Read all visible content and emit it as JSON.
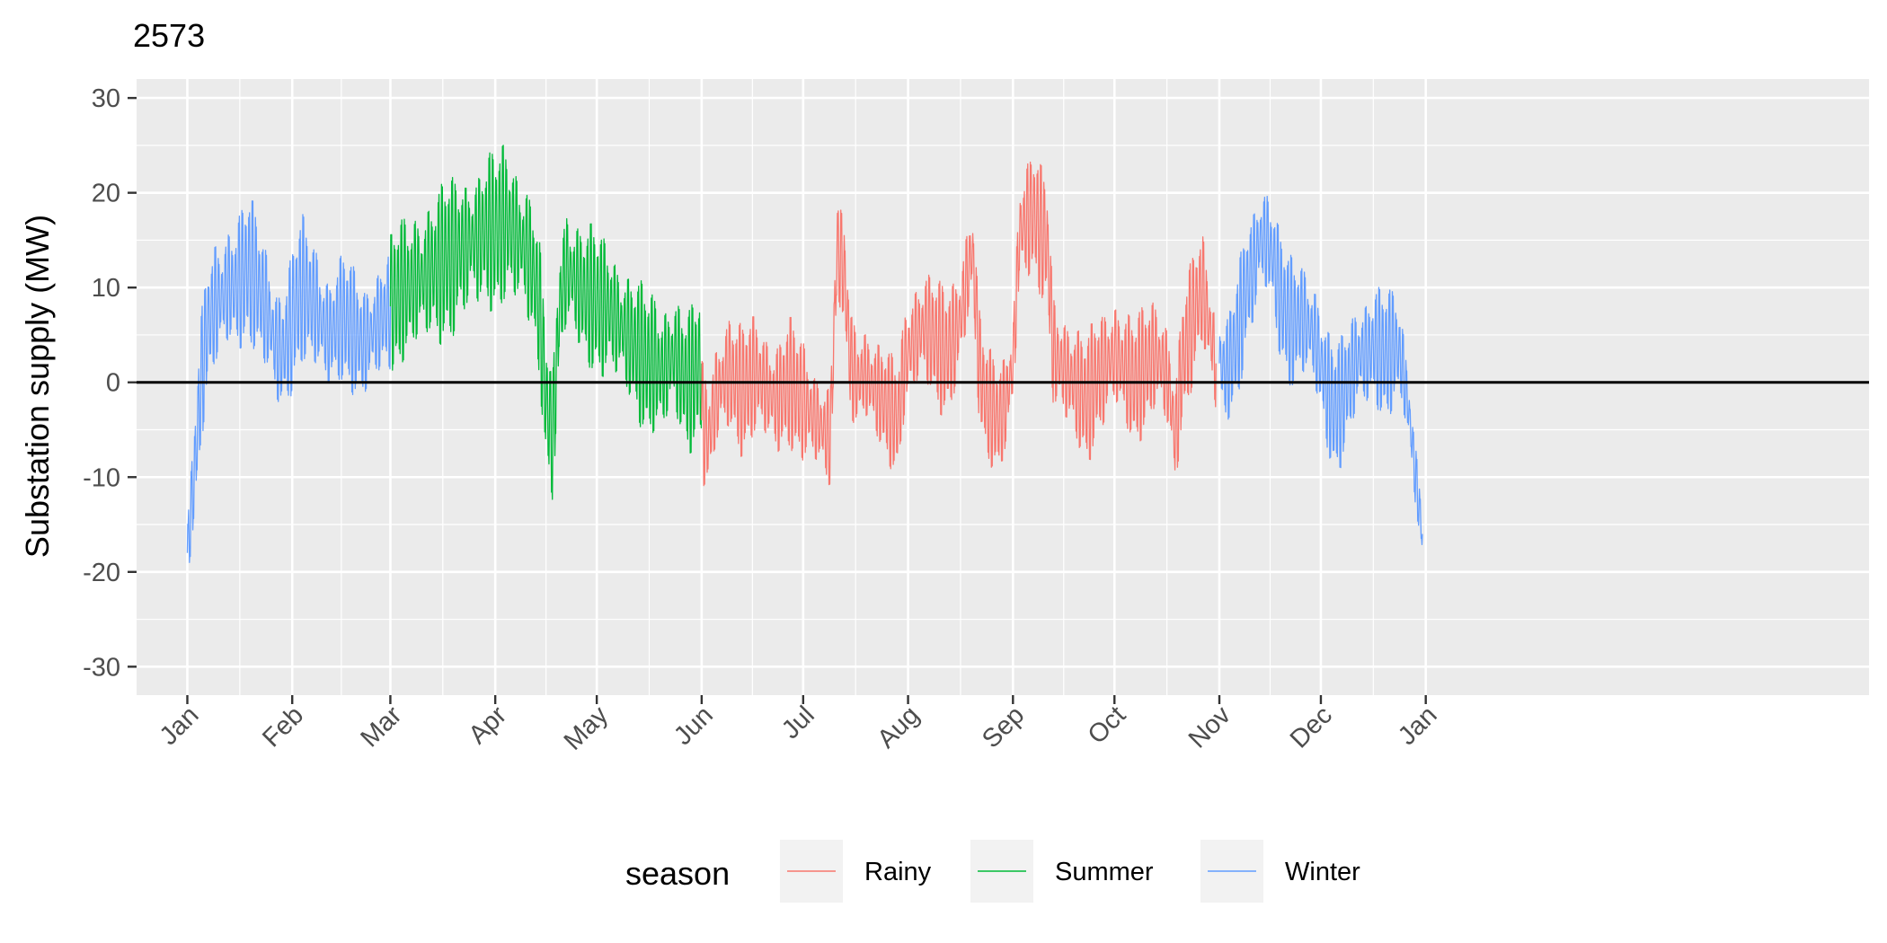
{
  "chart_data": {
    "type": "line",
    "title": "2573",
    "ylabel": "Substation supply (MW)",
    "xlabel": "",
    "ylim": [
      -33,
      32
    ],
    "yticks": [
      -30,
      -20,
      -10,
      0,
      10,
      20,
      30
    ],
    "xlim_days": [
      -15,
      497
    ],
    "xticks": [
      {
        "label": "Jan",
        "day": 0
      },
      {
        "label": "Feb",
        "day": 31
      },
      {
        "label": "Mar",
        "day": 60
      },
      {
        "label": "Apr",
        "day": 91
      },
      {
        "label": "May",
        "day": 121
      },
      {
        "label": "Jun",
        "day": 152
      },
      {
        "label": "Jul",
        "day": 182
      },
      {
        "label": "Aug",
        "day": 213
      },
      {
        "label": "Sep",
        "day": 244
      },
      {
        "label": "Oct",
        "day": 274
      },
      {
        "label": "Nov",
        "day": 305
      },
      {
        "label": "Dec",
        "day": 335
      },
      {
        "label": "Jan",
        "day": 366
      }
    ],
    "hline_y": 0,
    "grid": true,
    "legend": {
      "title": "season",
      "position": "bottom",
      "entries": [
        {
          "name": "Rainy",
          "color": "#F8766D"
        },
        {
          "name": "Summer",
          "color": "#00BA38"
        },
        {
          "name": "Winter",
          "color": "#619CFF"
        }
      ]
    },
    "series": [
      {
        "name": "Winter",
        "color": "#619CFF",
        "segments": [
          {
            "days": [
              0,
              2,
              4,
              6,
              8,
              10,
              12,
              14,
              16,
              18,
              20,
              22,
              24,
              26,
              28,
              30,
              32,
              34,
              36,
              38,
              40,
              42,
              44,
              46,
              48,
              50,
              52,
              54,
              56,
              58,
              60
            ],
            "daily_mean": [
              -18,
              -10,
              0,
              6,
              8,
              9,
              10,
              10,
              11,
              12,
              11,
              9,
              7,
              4,
              3,
              5,
              8,
              10,
              9,
              8,
              6,
              5,
              6,
              7,
              6,
              5,
              4,
              5,
              6,
              7,
              8
            ],
            "daily_amp": [
              4,
              6,
              8,
              8,
              9,
              9,
              9,
              9,
              9,
              9,
              9,
              9,
              9,
              9,
              9,
              9,
              9,
              9,
              9,
              9,
              9,
              8,
              8,
              8,
              8,
              8,
              8,
              8,
              8,
              8,
              8
            ]
          },
          {
            "days": [
              305,
              307,
              309,
              311,
              313,
              315,
              317,
              319,
              321,
              323,
              325,
              327,
              329,
              331,
              333,
              335,
              337,
              339,
              341,
              343,
              345,
              347,
              349,
              351,
              353,
              355,
              357,
              359,
              361,
              363,
              365
            ],
            "daily_mean": [
              2,
              1,
              3,
              6,
              10,
              12,
              15,
              15,
              13,
              9,
              7,
              6,
              7,
              6,
              5,
              2,
              -1,
              -3,
              -2,
              0,
              2,
              3,
              3,
              4,
              3,
              3,
              4,
              2,
              -3,
              -10,
              -16
            ],
            "daily_amp": [
              7,
              7,
              7,
              8,
              8,
              8,
              8,
              8,
              8,
              8,
              8,
              8,
              8,
              8,
              8,
              8,
              8,
              8,
              8,
              8,
              8,
              8,
              8,
              8,
              8,
              8,
              7,
              6,
              6,
              5,
              4
            ]
          }
        ]
      },
      {
        "name": "Summer",
        "color": "#00BA38",
        "segments": [
          {
            "days": [
              60,
              62,
              64,
              66,
              68,
              70,
              72,
              74,
              76,
              78,
              80,
              82,
              84,
              86,
              88,
              90,
              92,
              94,
              96,
              98,
              100,
              102,
              104,
              106,
              108,
              110,
              112,
              114,
              116,
              118,
              120,
              122,
              124,
              126,
              128,
              130,
              132,
              134,
              136,
              138,
              140,
              142,
              144,
              146,
              148,
              150,
              152
            ],
            "daily_mean": [
              8,
              9,
              10,
              10,
              11,
              11,
              12,
              12,
              13,
              13,
              14,
              14,
              15,
              15,
              16,
              16,
              16,
              17,
              16,
              15,
              14,
              12,
              8,
              -2,
              -6,
              8,
              12,
              11,
              10,
              9,
              9,
              8,
              8,
              7,
              6,
              5,
              4,
              3,
              2,
              2,
              1,
              2,
              3,
              1,
              0,
              1,
              2
            ],
            "daily_amp": [
              9,
              9,
              9,
              9,
              10,
              10,
              10,
              10,
              10,
              10,
              10,
              10,
              10,
              10,
              10,
              10,
              10,
              10,
              10,
              10,
              10,
              10,
              9,
              8,
              8,
              9,
              9,
              9,
              9,
              9,
              9,
              9,
              9,
              9,
              9,
              9,
              9,
              9,
              9,
              9,
              9,
              9,
              9,
              9,
              9,
              9,
              9
            ]
          }
        ]
      },
      {
        "name": "Rainy",
        "color": "#F8766D",
        "segments": [
          {
            "days": [
              152,
              154,
              156,
              158,
              160,
              162,
              164,
              166,
              168,
              170,
              172,
              174,
              176,
              178,
              180,
              182,
              184,
              186,
              188,
              190,
              192,
              194,
              196,
              198,
              200,
              202,
              204,
              206,
              208,
              210,
              212,
              214,
              216,
              218,
              220,
              222,
              224,
              226,
              228,
              230,
              232,
              234,
              236,
              238,
              240,
              242,
              244,
              246,
              248,
              250,
              252,
              254,
              256,
              258,
              260,
              262,
              264,
              266,
              268,
              270,
              272,
              274,
              276,
              278,
              280,
              282,
              284,
              286,
              288,
              290,
              292,
              294,
              296,
              298,
              300,
              302,
              304
            ],
            "daily_mean": [
              -4,
              -6,
              -2,
              0,
              1,
              0,
              -1,
              0,
              1,
              0,
              -1,
              -2,
              -1,
              0,
              -1,
              -2,
              -3,
              -4,
              -5,
              -6,
              14,
              12,
              2,
              0,
              1,
              0,
              -1,
              -2,
              -3,
              -4,
              2,
              4,
              5,
              6,
              5,
              4,
              3,
              4,
              6,
              10,
              14,
              2,
              -2,
              -3,
              -4,
              -2,
              2,
              16,
              17,
              18,
              16,
              15,
              3,
              2,
              1,
              0,
              -1,
              -2,
              0,
              1,
              2,
              3,
              2,
              1,
              0,
              1,
              2,
              3,
              2,
              0,
              -6,
              2,
              5,
              8,
              10,
              6,
              2
            ],
            "daily_amp": [
              8,
              8,
              8,
              8,
              8,
              8,
              8,
              8,
              8,
              8,
              8,
              8,
              8,
              8,
              8,
              8,
              7,
              7,
              7,
              7,
              6,
              6,
              7,
              7,
              7,
              7,
              7,
              7,
              7,
              7,
              7,
              8,
              8,
              8,
              8,
              8,
              8,
              8,
              8,
              8,
              8,
              8,
              7,
              7,
              7,
              7,
              7,
              8,
              8,
              8,
              8,
              8,
              8,
              8,
              8,
              8,
              8,
              8,
              8,
              8,
              8,
              8,
              8,
              8,
              8,
              8,
              8,
              8,
              8,
              8,
              7,
              8,
              8,
              8,
              8,
              8,
              8
            ]
          }
        ]
      }
    ]
  }
}
